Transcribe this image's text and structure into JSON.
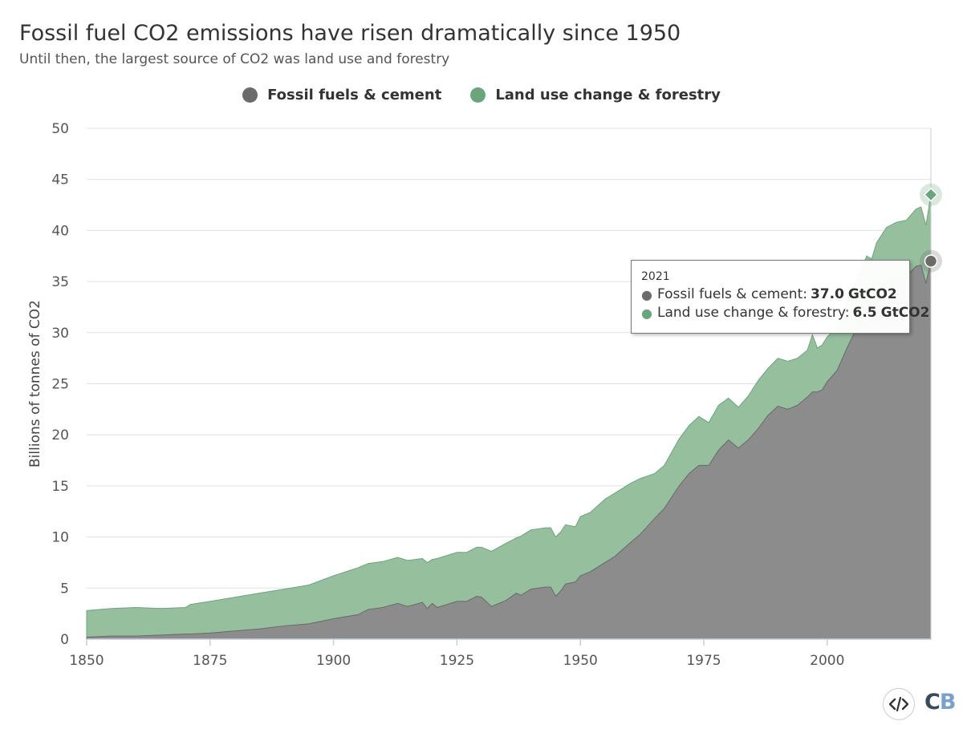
{
  "title": "Fossil fuel CO2 emissions have risen dramatically since 1950",
  "subtitle": "Until then, the largest source of CO2 was land use and forestry",
  "colors": {
    "fossil": "#6b6b6b",
    "fossil_fill": "#8c8c8c",
    "land": "#6aa57b",
    "land_fill": "#96bf9e",
    "grid": "#e0e0e0",
    "axis": "#c6cfe0",
    "logo_dark": "#3b4a5e",
    "logo_light": "#7ba0cc"
  },
  "tooltip": {
    "year": "2021",
    "fossil_label": "Fossil fuels & cement:",
    "fossil_value": "37.0",
    "land_label": "Land use change & forestry:",
    "land_value": "6.5",
    "unit": "GtCO2"
  },
  "icons": {
    "embed": "code-embed-icon",
    "logo": "CB"
  },
  "logo": {
    "c": "C",
    "b": "B"
  },
  "chart_data": {
    "type": "area",
    "stacked": true,
    "title": "Fossil fuel CO2 emissions have risen dramatically since 1950",
    "subtitle": "Until then, the largest source of CO2 was land use and forestry",
    "xlabel": "",
    "ylabel": "Billions of tonnes of CO2",
    "xlim": [
      1850,
      2021
    ],
    "ylim": [
      0,
      50
    ],
    "xticks": [
      1850,
      1875,
      1900,
      1925,
      1950,
      1975,
      2000
    ],
    "yticks": [
      0,
      5,
      10,
      15,
      20,
      25,
      30,
      35,
      40,
      45,
      50
    ],
    "grid": true,
    "legend": "top-center",
    "x": [
      1850,
      1855,
      1860,
      1865,
      1870,
      1871,
      1875,
      1880,
      1885,
      1890,
      1895,
      1900,
      1905,
      1907,
      1910,
      1913,
      1915,
      1918,
      1919,
      1920,
      1921,
      1925,
      1927,
      1929,
      1930,
      1932,
      1935,
      1937,
      1938,
      1940,
      1943,
      1944,
      1945,
      1946,
      1947,
      1949,
      1950,
      1952,
      1955,
      1957,
      1960,
      1962,
      1965,
      1967,
      1970,
      1972,
      1974,
      1976,
      1978,
      1980,
      1982,
      1984,
      1986,
      1988,
      1990,
      1992,
      1994,
      1996,
      1997,
      1998,
      1999,
      2000,
      2002,
      2004,
      2006,
      2008,
      2009,
      2010,
      2012,
      2014,
      2016,
      2018,
      2019,
      2020,
      2021
    ],
    "series": [
      {
        "name": "Fossil fuels & cement",
        "values": [
          0.2,
          0.3,
          0.3,
          0.4,
          0.5,
          0.5,
          0.6,
          0.8,
          1.0,
          1.3,
          1.5,
          2.0,
          2.4,
          2.9,
          3.1,
          3.5,
          3.2,
          3.6,
          3.0,
          3.5,
          3.1,
          3.7,
          3.7,
          4.2,
          4.1,
          3.2,
          3.8,
          4.5,
          4.3,
          4.9,
          5.1,
          5.1,
          4.2,
          4.7,
          5.4,
          5.6,
          6.2,
          6.6,
          7.5,
          8.1,
          9.4,
          10.2,
          11.8,
          12.8,
          15.0,
          16.2,
          17.0,
          17.0,
          18.5,
          19.5,
          18.7,
          19.5,
          20.6,
          21.9,
          22.8,
          22.5,
          22.9,
          23.7,
          24.2,
          24.2,
          24.4,
          25.2,
          26.3,
          28.5,
          30.5,
          32.4,
          32.0,
          33.5,
          35.0,
          35.4,
          35.5,
          36.5,
          36.6,
          34.8,
          37.0
        ]
      },
      {
        "name": "Land use change & forestry",
        "values": [
          2.6,
          2.7,
          2.8,
          2.6,
          2.6,
          2.9,
          3.1,
          3.3,
          3.5,
          3.6,
          3.8,
          4.2,
          4.6,
          4.5,
          4.5,
          4.5,
          4.5,
          4.3,
          4.5,
          4.3,
          4.8,
          4.8,
          4.8,
          4.8,
          4.9,
          5.4,
          5.6,
          5.4,
          5.8,
          5.8,
          5.8,
          5.8,
          5.8,
          5.8,
          5.8,
          5.4,
          5.8,
          5.8,
          6.2,
          6.2,
          5.8,
          5.5,
          4.4,
          4.2,
          4.6,
          4.7,
          4.8,
          4.2,
          4.4,
          4.1,
          4.0,
          4.3,
          4.7,
          4.6,
          4.7,
          4.7,
          4.6,
          4.6,
          5.6,
          4.3,
          4.4,
          4.4,
          4.2,
          4.4,
          4.7,
          5.1,
          5.2,
          5.3,
          5.3,
          5.4,
          5.5,
          5.6,
          5.7,
          5.7,
          6.5
        ]
      }
    ]
  }
}
